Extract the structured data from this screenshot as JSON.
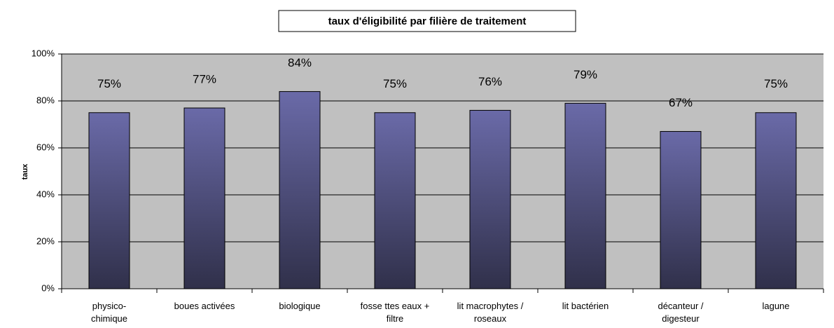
{
  "chart_data": {
    "type": "bar",
    "title": "taux d'éligibilité par filière de traitement",
    "y_label": "taux",
    "categories": [
      "physico-\nchimique",
      "boues activées",
      "biologique",
      "fosse ttes eaux +\nfiltre",
      "lit macrophytes /\nroseaux",
      "lit bactérien",
      "décanteur /\ndigesteur",
      "lagune"
    ],
    "values": [
      75,
      77,
      84,
      75,
      76,
      79,
      67,
      75
    ],
    "value_labels": [
      "75%",
      "77%",
      "84%",
      "75%",
      "76%",
      "79%",
      "67%",
      "75%"
    ],
    "color": "#5f5f9c",
    "ylim": [
      0,
      100
    ],
    "yticks": [
      {
        "value": 0,
        "label": "0%"
      },
      {
        "value": 20,
        "label": "20%"
      },
      {
        "value": 40,
        "label": "40%"
      },
      {
        "value": 60,
        "label": "60%"
      },
      {
        "value": 80,
        "label": "80%"
      },
      {
        "value": 100,
        "label": "100%"
      }
    ],
    "grid": true
  }
}
